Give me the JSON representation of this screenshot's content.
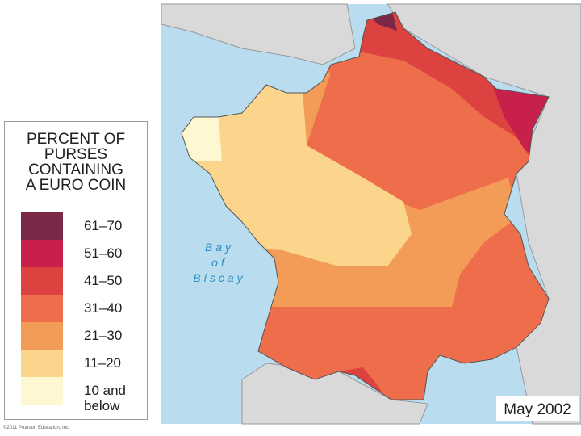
{
  "legend": {
    "title": [
      "PERCENT OF",
      "PURSES",
      "CONTAINING",
      "A EURO COIN"
    ],
    "items": [
      {
        "label": "61–70",
        "color": "#7b2747"
      },
      {
        "label": "51–60",
        "color": "#c7204b"
      },
      {
        "label": "41–50",
        "color": "#db4240"
      },
      {
        "label": "31–40",
        "color": "#ee6e4b"
      },
      {
        "label": "21–30",
        "color": "#f39c58"
      },
      {
        "label": "11–20",
        "color": "#fbd58b"
      },
      {
        "label": "10 and below",
        "color": "#fef8d2"
      }
    ]
  },
  "map": {
    "sea_label": [
      "Bay",
      "of",
      "Biscay"
    ],
    "date": "May 2002"
  },
  "credit": "©2011 Pearson Education, Inc."
}
